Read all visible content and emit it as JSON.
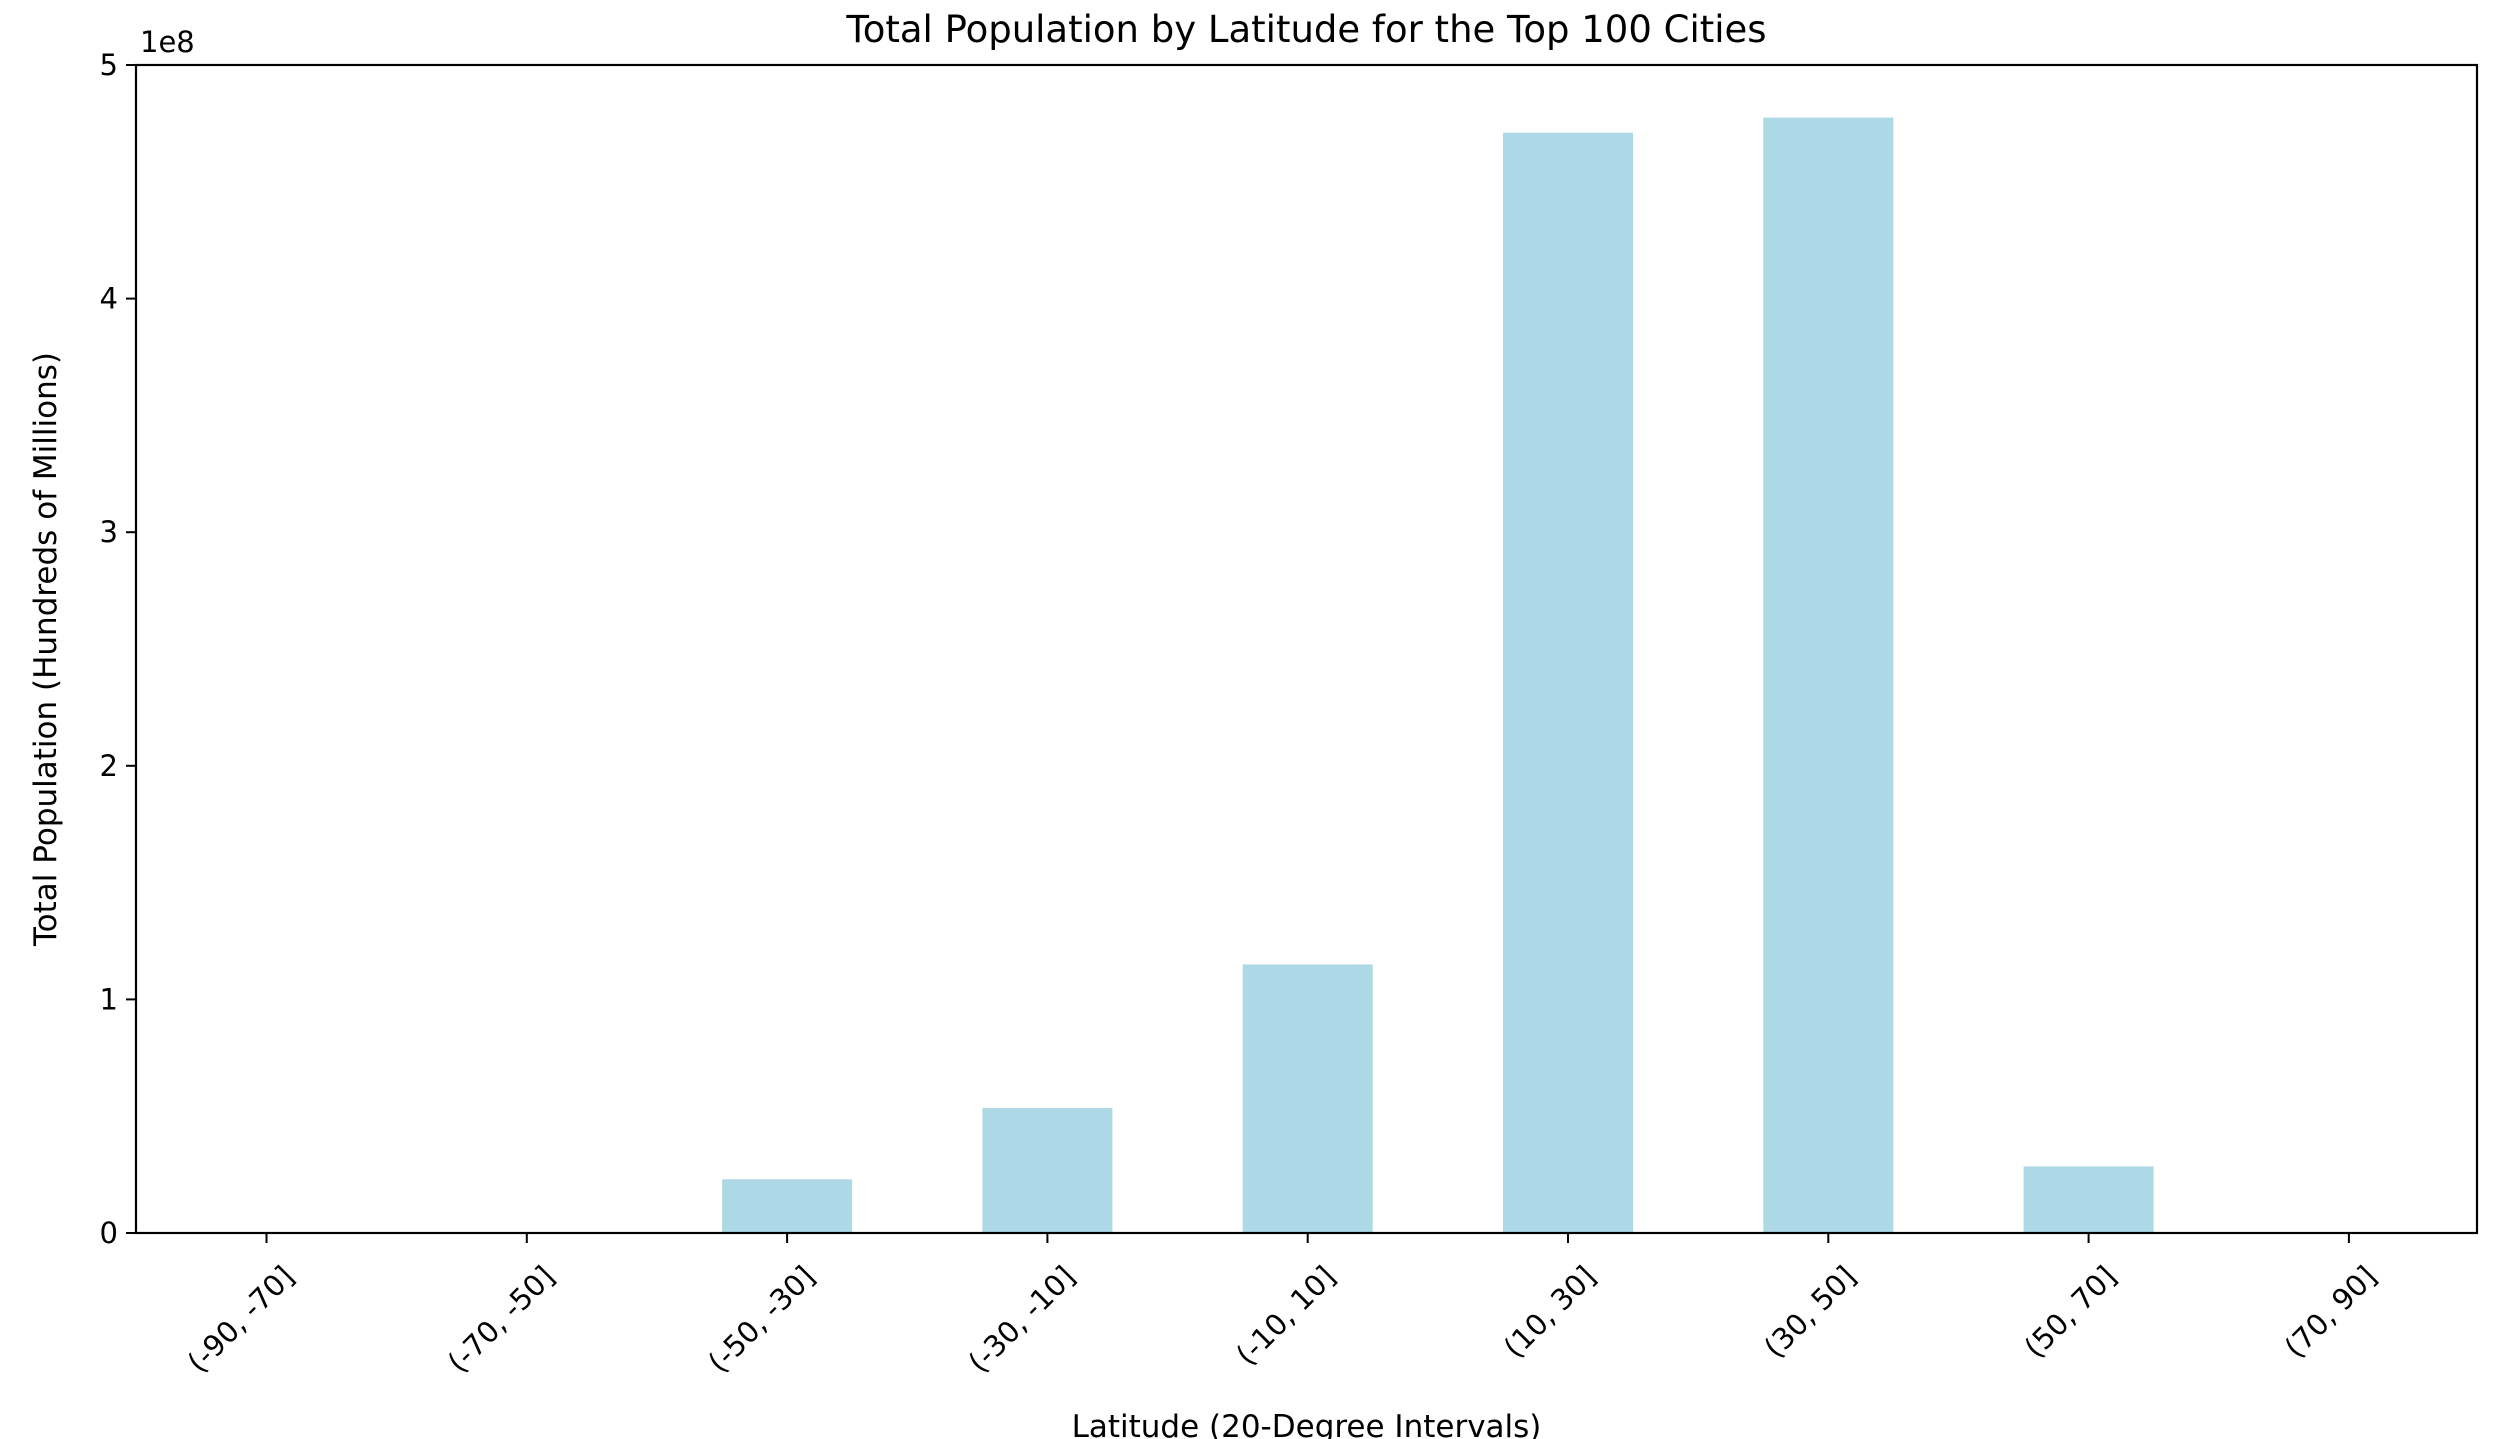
{
  "chart_data": {
    "type": "bar",
    "title": "Total Population by Latitude for the Top 100 Cities",
    "xlabel": "Latitude (20-Degree Intervals)",
    "ylabel": "Total Population (Hundreds of Millions)",
    "y_offset_label": "1e8",
    "categories": [
      "(-90, -70]",
      "(-70, -50]",
      "(-50, -30]",
      "(-30, -10]",
      "(-10, 10]",
      "(10, 30]",
      "(30, 50]",
      "(50, 70]",
      "(70, 90]"
    ],
    "values": [
      0,
      0,
      23000000,
      53500000,
      115000000,
      471000000,
      477500000,
      28500000,
      0
    ],
    "ylim": [
      0,
      500000000
    ],
    "yticks": [
      0,
      100000000,
      200000000,
      300000000,
      400000000,
      500000000
    ],
    "ytick_labels": [
      "0",
      "1",
      "2",
      "3",
      "4",
      "5"
    ],
    "grid": false,
    "legend": "none",
    "bar_color": "#add8e6"
  }
}
